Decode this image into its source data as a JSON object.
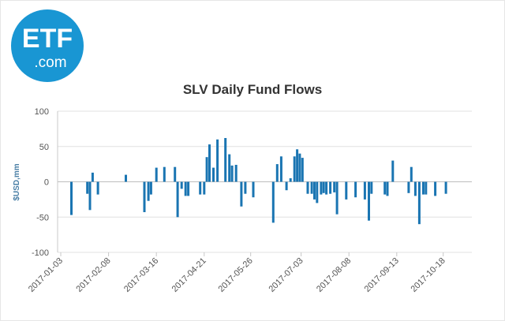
{
  "logo": {
    "main_text": "ETF",
    "sub_text": ".com",
    "brand_color": "#1996d3"
  },
  "colors": {
    "bar": "#1a75b2",
    "grid": "#e0e0e0",
    "axis": "#c8c8c8"
  },
  "chart_data": {
    "type": "bar",
    "title": "SLV Daily Fund Flows",
    "xlabel": "",
    "ylabel": "$USD,mm",
    "ylim": [
      -100,
      100
    ],
    "yticks": [
      100,
      50,
      0,
      -50,
      -100
    ],
    "xticks": [
      {
        "label": "2017-01-03",
        "day": 0
      },
      {
        "label": "2017-02-08",
        "day": 36
      },
      {
        "label": "2017-03-16",
        "day": 72
      },
      {
        "label": "2017-04-21",
        "day": 108
      },
      {
        "label": "2017-05-26",
        "day": 143
      },
      {
        "label": "2017-07-03",
        "day": 181
      },
      {
        "label": "2017-08-08",
        "day": 217
      },
      {
        "label": "2017-09-13",
        "day": 253
      },
      {
        "label": "2017-10-18",
        "day": 288
      }
    ],
    "series": [
      {
        "name": "SLV Daily Fund Flows",
        "points": [
          {
            "day": 8,
            "value": -47
          },
          {
            "day": 20,
            "value": -17
          },
          {
            "day": 22,
            "value": -40
          },
          {
            "day": 24,
            "value": 13
          },
          {
            "day": 28,
            "value": -18
          },
          {
            "day": 49,
            "value": 10
          },
          {
            "day": 63,
            "value": -43
          },
          {
            "day": 66,
            "value": -27
          },
          {
            "day": 68,
            "value": -18
          },
          {
            "day": 72,
            "value": 20
          },
          {
            "day": 78,
            "value": 21
          },
          {
            "day": 86,
            "value": 21
          },
          {
            "day": 88,
            "value": -50
          },
          {
            "day": 91,
            "value": -10
          },
          {
            "day": 94,
            "value": -20
          },
          {
            "day": 96,
            "value": -20
          },
          {
            "day": 105,
            "value": -18
          },
          {
            "day": 108,
            "value": -18
          },
          {
            "day": 110,
            "value": 35
          },
          {
            "day": 112,
            "value": 53
          },
          {
            "day": 115,
            "value": 20
          },
          {
            "day": 118,
            "value": 60
          },
          {
            "day": 124,
            "value": 62
          },
          {
            "day": 127,
            "value": 39
          },
          {
            "day": 129,
            "value": 23
          },
          {
            "day": 132,
            "value": 24
          },
          {
            "day": 136,
            "value": -35
          },
          {
            "day": 139,
            "value": -17
          },
          {
            "day": 145,
            "value": -22
          },
          {
            "day": 160,
            "value": -58
          },
          {
            "day": 163,
            "value": 25
          },
          {
            "day": 166,
            "value": 36
          },
          {
            "day": 170,
            "value": -12
          },
          {
            "day": 173,
            "value": 5
          },
          {
            "day": 176,
            "value": 36
          },
          {
            "day": 178,
            "value": 46
          },
          {
            "day": 180,
            "value": 40
          },
          {
            "day": 182,
            "value": 34
          },
          {
            "day": 186,
            "value": -17
          },
          {
            "day": 189,
            "value": -17
          },
          {
            "day": 191,
            "value": -25
          },
          {
            "day": 193,
            "value": -30
          },
          {
            "day": 196,
            "value": -18
          },
          {
            "day": 198,
            "value": -16
          },
          {
            "day": 200,
            "value": -18
          },
          {
            "day": 203,
            "value": -17
          },
          {
            "day": 206,
            "value": -15
          },
          {
            "day": 208,
            "value": -46
          },
          {
            "day": 215,
            "value": -25
          },
          {
            "day": 222,
            "value": -22
          },
          {
            "day": 229,
            "value": -25
          },
          {
            "day": 232,
            "value": -55
          },
          {
            "day": 234,
            "value": -17
          },
          {
            "day": 244,
            "value": -18
          },
          {
            "day": 246,
            "value": -20
          },
          {
            "day": 250,
            "value": 30
          },
          {
            "day": 262,
            "value": -16
          },
          {
            "day": 264,
            "value": 21
          },
          {
            "day": 267,
            "value": -20
          },
          {
            "day": 270,
            "value": -60
          },
          {
            "day": 273,
            "value": -18
          },
          {
            "day": 275,
            "value": -18
          },
          {
            "day": 282,
            "value": -20
          },
          {
            "day": 290,
            "value": -17
          }
        ]
      }
    ]
  }
}
